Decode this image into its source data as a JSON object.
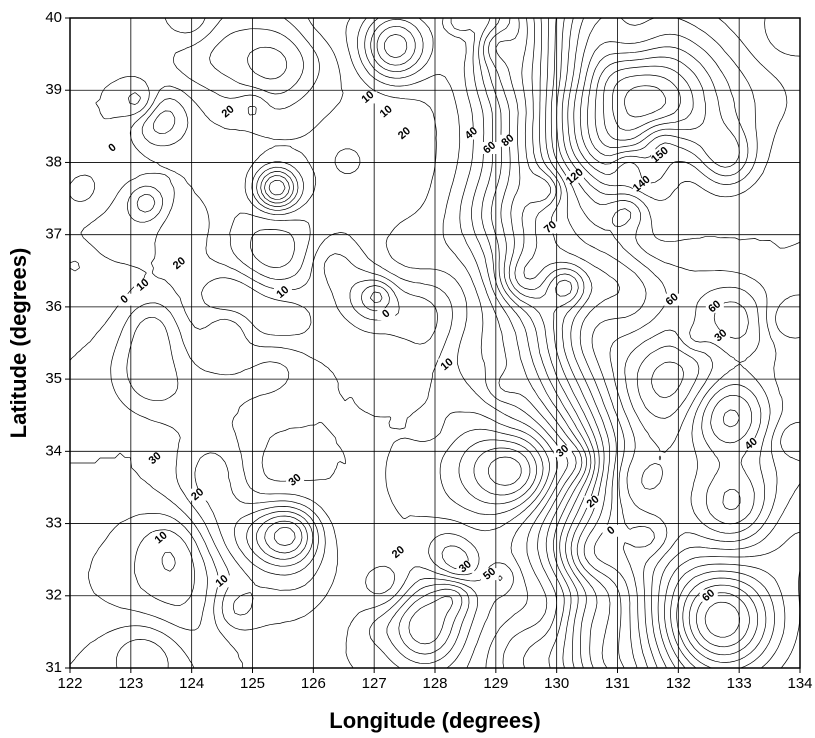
{
  "chart_data": {
    "type": "contour",
    "xlabel": "Longitude (degrees)",
    "ylabel": "Latitude (degrees)",
    "xlim": [
      122,
      134
    ],
    "ylim": [
      31,
      40
    ],
    "xticks": [
      122,
      123,
      124,
      125,
      126,
      127,
      128,
      129,
      130,
      131,
      132,
      133,
      134
    ],
    "yticks": [
      31,
      32,
      33,
      34,
      35,
      36,
      37,
      38,
      39,
      40
    ],
    "grid": true,
    "contour_labels": [
      0,
      20,
      10,
      10,
      20,
      40,
      60,
      80,
      70,
      140,
      150,
      120,
      20,
      10,
      0,
      10,
      0,
      10,
      60,
      60,
      30,
      30,
      20,
      10,
      10,
      30,
      20,
      30,
      50,
      30,
      20,
      0,
      60,
      40
    ]
  }
}
